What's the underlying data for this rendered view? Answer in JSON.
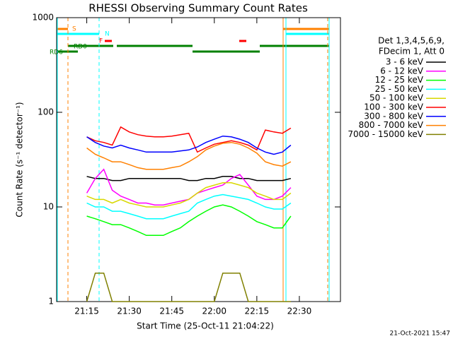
{
  "chart_data": {
    "type": "line",
    "title": "RHESSI Observing Summary Count Rates",
    "x_label": "Start Time (25-Oct-11 21:04:22)",
    "y_label": "Count Rate (s⁻¹ detector⁻¹)",
    "legend_header": [
      "Det 1,3,4,5,6,9,",
      "FDecim 1, Att 0"
    ],
    "annotations": [
      "S",
      "N",
      "F",
      "RD0",
      "RD6"
    ],
    "footer": "21-Oct-2021 15:47",
    "log_y": true,
    "xlim": [
      4.37,
      104.5
    ],
    "ylim": [
      1,
      1000
    ],
    "xticks": [
      {
        "value": 15,
        "label": "21:15"
      },
      {
        "value": 30,
        "label": "21:30"
      },
      {
        "value": 45,
        "label": "21:45"
      },
      {
        "value": 60,
        "label": "22:00"
      },
      {
        "value": 75,
        "label": "22:15"
      },
      {
        "value": 90,
        "label": "22:30"
      }
    ],
    "yticks": [
      1,
      10,
      100,
      1000
    ],
    "x": [
      15,
      18,
      21,
      24,
      27,
      30,
      33,
      36,
      39,
      42,
      45,
      48,
      51,
      54,
      57,
      60,
      63,
      66,
      69,
      72,
      75,
      78,
      81,
      84,
      87
    ],
    "series": [
      {
        "name": "3 - 6 keV",
        "color": "#000000",
        "values": [
          21,
          20,
          20,
          19,
          19,
          20,
          20,
          20,
          20,
          20,
          20,
          20,
          19,
          19,
          20,
          20,
          21,
          21,
          20,
          20,
          19,
          19,
          19,
          19,
          20
        ]
      },
      {
        "name": "6 - 12 keV",
        "color": "#ff00ff",
        "values": [
          14,
          20,
          25,
          15,
          13,
          12,
          11,
          11,
          10.5,
          10.5,
          11,
          11.5,
          12,
          14,
          15,
          16,
          17,
          20,
          22,
          17,
          13,
          12,
          12,
          13,
          16
        ]
      },
      {
        "name": "12 - 25 keV",
        "color": "#00ff00",
        "values": [
          8,
          7.5,
          7,
          6.5,
          6.5,
          6,
          5.5,
          5,
          5,
          5,
          5.5,
          6,
          7,
          8,
          9,
          10,
          10.5,
          10,
          9,
          8,
          7,
          6.5,
          6,
          6,
          8
        ]
      },
      {
        "name": "25 - 50 keV",
        "color": "#00ffff",
        "values": [
          11,
          10,
          10,
          9,
          9,
          8.5,
          8,
          7.5,
          7.5,
          7.5,
          8,
          8.5,
          9,
          11,
          12,
          13,
          13.5,
          13,
          12.5,
          12,
          11,
          10,
          9.5,
          9.5,
          11
        ]
      },
      {
        "name": "50 - 100 keV",
        "color": "#d8d800",
        "values": [
          13,
          12,
          12,
          11,
          12,
          11,
          10.5,
          10,
          10,
          10,
          10.5,
          11,
          12,
          14,
          16,
          17,
          18,
          18,
          17,
          16,
          14,
          13,
          12,
          12,
          14
        ]
      },
      {
        "name": "100 - 300 keV",
        "color": "#ff0000",
        "values": [
          55,
          50,
          48,
          45,
          70,
          62,
          58,
          56,
          55,
          55,
          56,
          58,
          60,
          38,
          42,
          46,
          48,
          50,
          48,
          45,
          40,
          65,
          62,
          60,
          68
        ]
      },
      {
        "name": "300 - 800 keV",
        "color": "#0000ff",
        "values": [
          55,
          48,
          44,
          42,
          45,
          42,
          40,
          38,
          38,
          38,
          38,
          39,
          40,
          43,
          48,
          52,
          56,
          55,
          52,
          48,
          42,
          38,
          36,
          38,
          45
        ]
      },
      {
        "name": "800 - 7000 keV",
        "color": "#ff8000",
        "values": [
          42,
          36,
          33,
          30,
          30,
          28,
          26,
          25,
          25,
          25,
          26,
          27,
          30,
          34,
          40,
          44,
          47,
          48,
          46,
          42,
          37,
          30,
          28,
          27,
          30
        ]
      },
      {
        "name": "7000 - 15000 keV",
        "color": "#808000",
        "values": [
          1,
          2,
          2,
          1,
          1,
          1,
          1,
          1,
          1,
          1,
          1,
          1,
          1,
          1,
          1,
          1,
          2,
          2,
          2,
          1,
          1,
          1,
          1,
          1,
          1
        ]
      }
    ]
  }
}
